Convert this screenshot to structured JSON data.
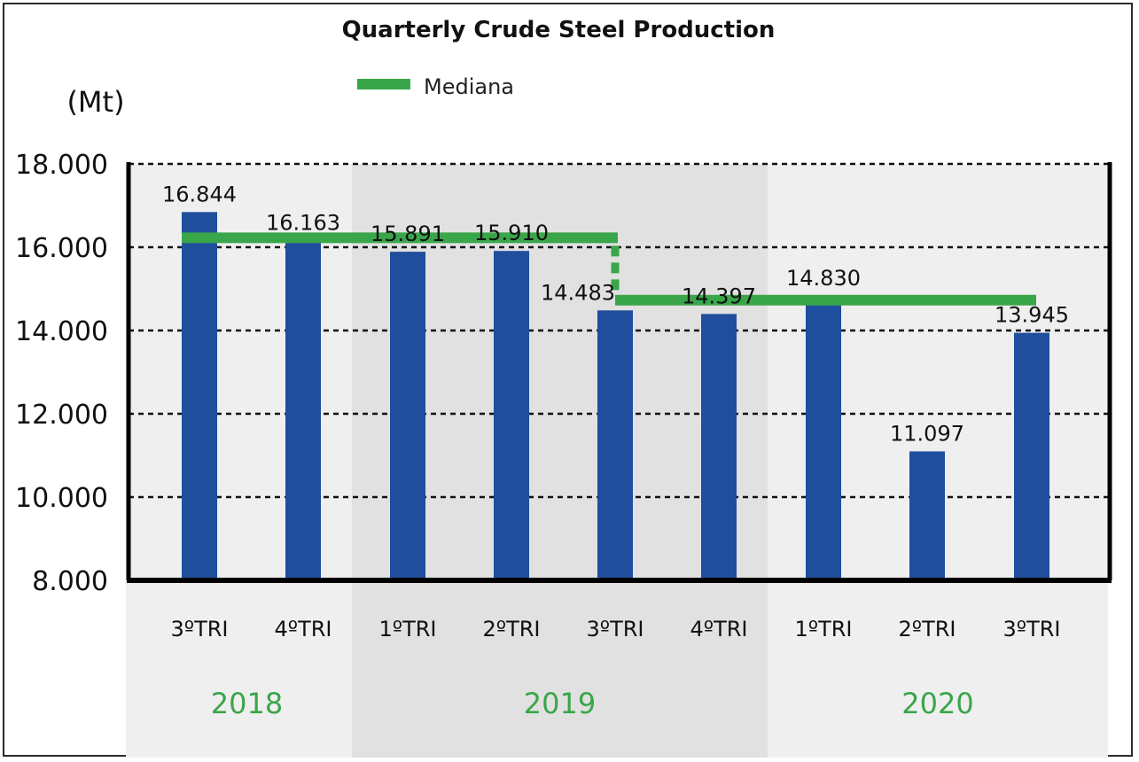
{
  "chart_data": {
    "type": "bar",
    "title": "Quarterly Crude Steel Production",
    "ylabel": "(Mt)",
    "ylim": [
      8000,
      18000
    ],
    "yticks": [
      "8.000",
      "10.000",
      "12.000",
      "14.000",
      "16.000",
      "18.000"
    ],
    "ytick_values": [
      8000,
      10000,
      12000,
      14000,
      16000,
      18000
    ],
    "categories": [
      "3ºTRI",
      "4ºTRI",
      "1ºTRI",
      "2ºTRI",
      "3ºTRI",
      "4ºTRI",
      "1ºTRI",
      "2ºTRI",
      "3ºTRI"
    ],
    "years": [
      "2018",
      "2018",
      "2019",
      "2019",
      "2019",
      "2019",
      "2020",
      "2020",
      "2020"
    ],
    "year_groups": [
      {
        "label": "2018",
        "start": 0,
        "end": 1
      },
      {
        "label": "2019",
        "start": 2,
        "end": 5
      },
      {
        "label": "2020",
        "start": 6,
        "end": 8
      }
    ],
    "values": [
      16844,
      16163,
      15891,
      15910,
      14483,
      14397,
      14830,
      11097,
      13945
    ],
    "value_labels": [
      "16.844",
      "16.163",
      "15.891",
      "15.910",
      "14.483",
      "14.397",
      "14.830",
      "11.097",
      "13.945"
    ],
    "median": {
      "label": "Mediana",
      "segments": [
        {
          "from_index": 0,
          "to_index": 4,
          "value": 16163
        },
        {
          "from_index": 4,
          "to_index": 8,
          "value": 14730
        }
      ]
    },
    "colors": {
      "bar": "#1f4e9c",
      "median": "#3aa64a",
      "year_text": "#3aa64a",
      "band_light": "#efefef",
      "band_dark": "#e1e1e1"
    }
  }
}
